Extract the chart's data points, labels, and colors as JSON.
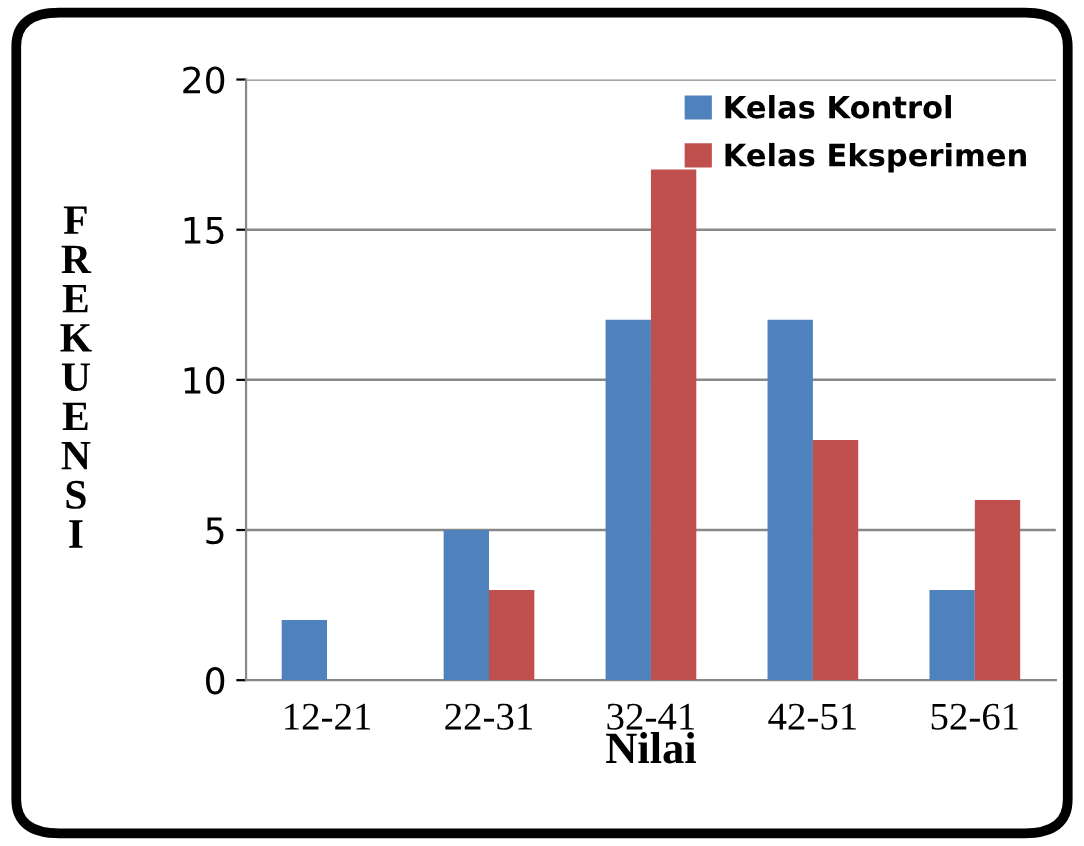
{
  "chart_data": {
    "type": "bar",
    "xlabel": "Nilai",
    "ylabel": "FREKUENSI",
    "categories": [
      "12-21",
      "22-31",
      "32-41",
      "42-51",
      "52-61"
    ],
    "series": [
      {
        "name": "Kelas Kontrol",
        "color": "#4f81bd",
        "values": [
          2,
          5,
          12,
          12,
          3
        ]
      },
      {
        "name": "Kelas Eksperimen",
        "color": "#c0504d",
        "values": [
          0,
          3,
          17,
          8,
          6
        ]
      }
    ],
    "ylim": [
      0,
      20
    ],
    "yticks": [
      0,
      5,
      10,
      15,
      20
    ],
    "grid": "y",
    "legend": "top right"
  }
}
